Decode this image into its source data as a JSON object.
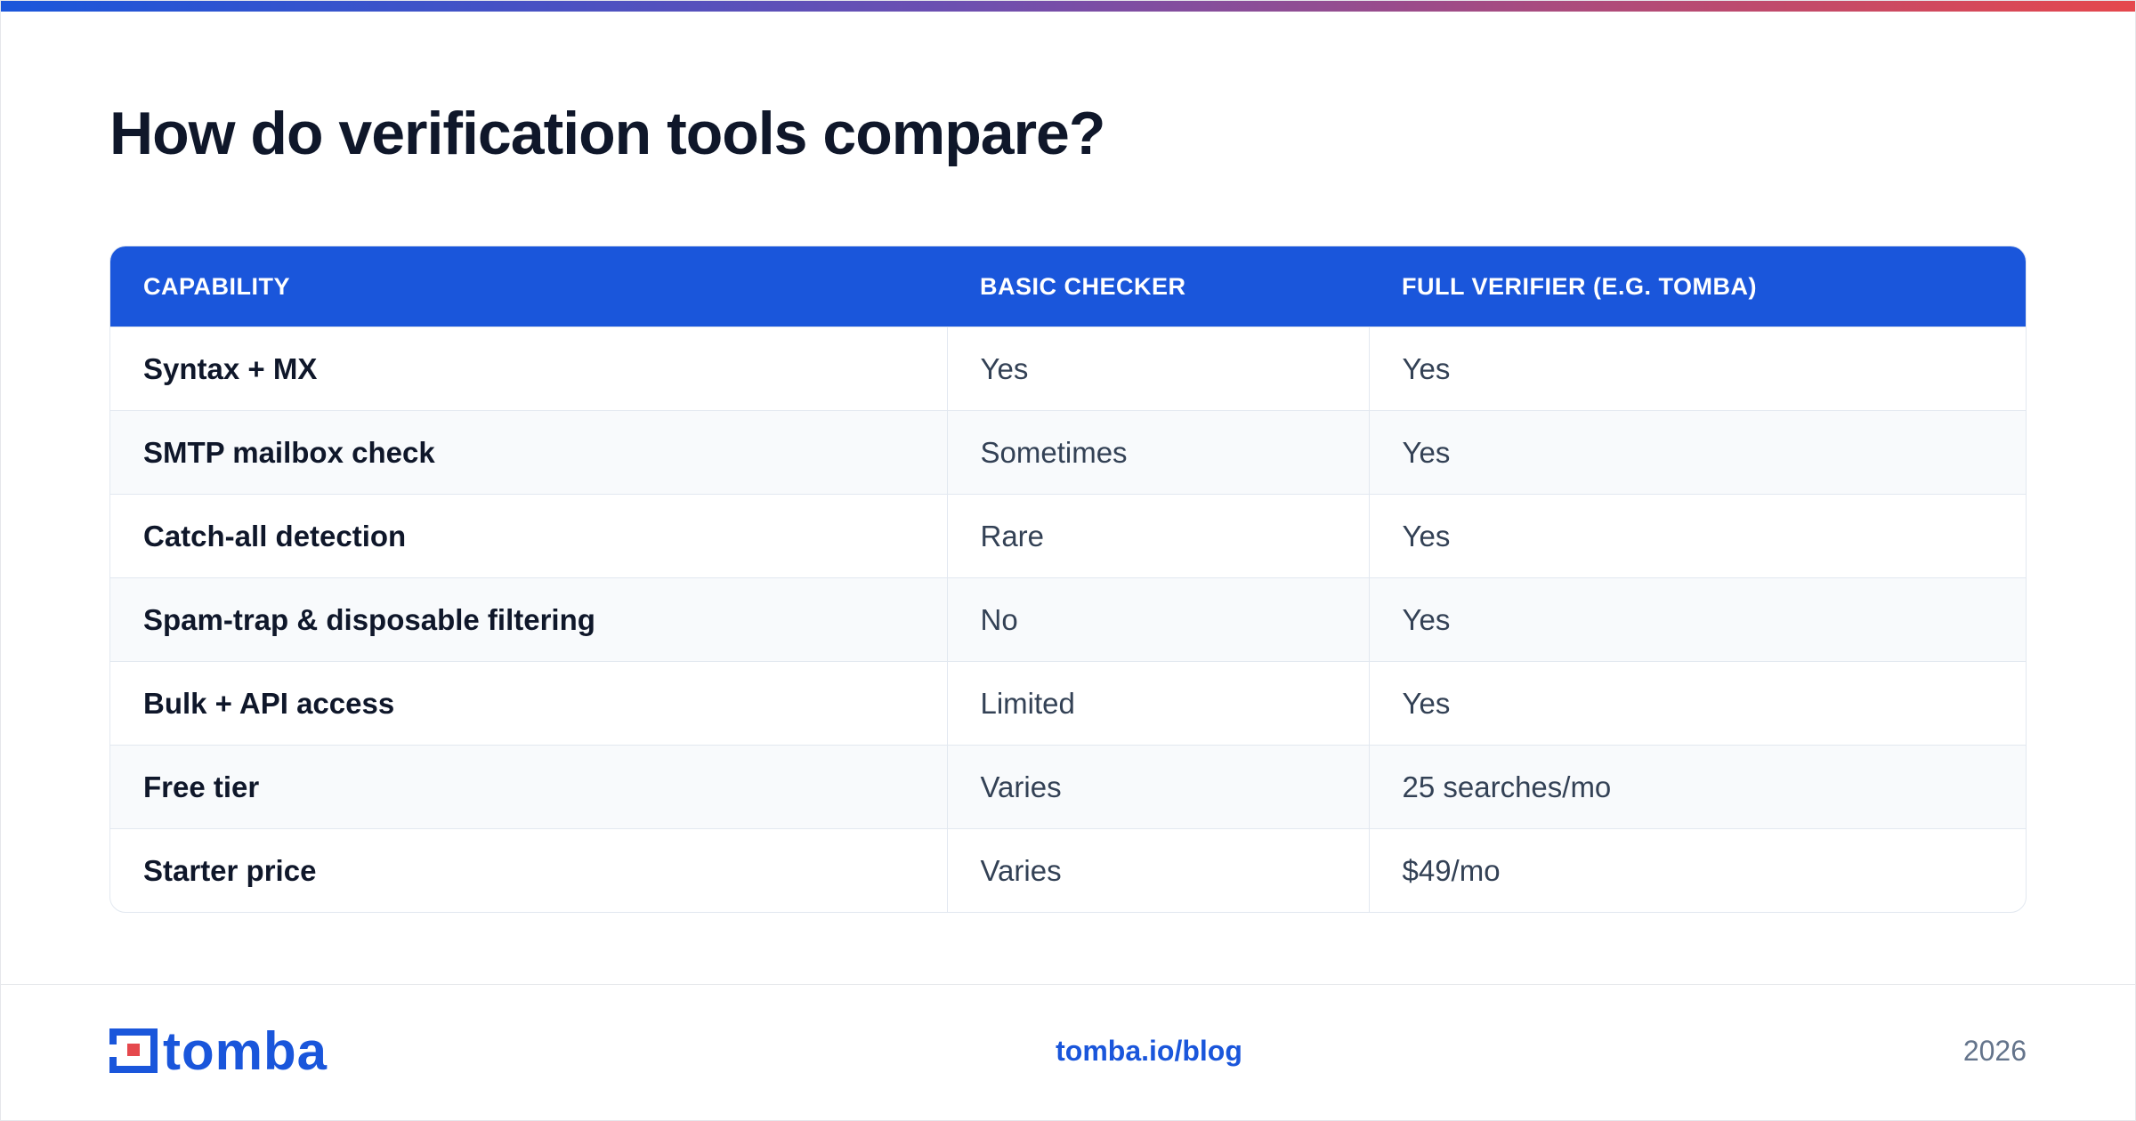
{
  "header": {
    "title": "How do verification tools compare?"
  },
  "table": {
    "columns": [
      "CAPABILITY",
      "BASIC CHECKER",
      "FULL VERIFIER (E.G. TOMBA)"
    ],
    "rows": [
      [
        "Syntax + MX",
        "Yes",
        "Yes"
      ],
      [
        "SMTP mailbox check",
        "Sometimes",
        "Yes"
      ],
      [
        "Catch-all detection",
        "Rare",
        "Yes"
      ],
      [
        "Spam-trap & disposable filtering",
        "No",
        "Yes"
      ],
      [
        "Bulk + API access",
        "Limited",
        "Yes"
      ],
      [
        "Free tier",
        "Varies",
        "25 searches/mo"
      ],
      [
        "Starter price",
        "Varies",
        "$49/mo"
      ]
    ]
  },
  "footer": {
    "logo": "tomba",
    "link": "tomba.io/blog",
    "year": "2026"
  }
}
